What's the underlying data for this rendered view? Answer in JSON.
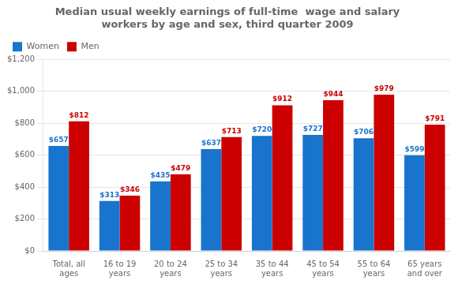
{
  "chart_data": {
    "type": "bar",
    "title": "Median usual weekly earnings of full-time  wage and salary\nworkers by age and sex, third quarter 2009",
    "categories": [
      "Total, all\nages",
      "16 to 19\nyears",
      "20 to 24\nyears",
      "25 to 34\nyears",
      "35 to 44\nyears",
      "45 to 54\nyears",
      "55 to 64\nyears",
      "65 years\nand over"
    ],
    "series": [
      {
        "name": "Women",
        "color": "#1874CD",
        "values": [
          657,
          313,
          435,
          637,
          720,
          727,
          706,
          599
        ],
        "value_labels": [
          "$657",
          "$313",
          "$435",
          "$637",
          "$720",
          "$727",
          "$706",
          "$599"
        ]
      },
      {
        "name": "Men",
        "color": "#CC0000",
        "values": [
          812,
          346,
          479,
          713,
          912,
          944,
          979,
          791
        ],
        "value_labels": [
          "$812",
          "$346",
          "$479",
          "$713",
          "$912",
          "$944",
          "$979",
          "$791"
        ]
      }
    ],
    "ylim": [
      0,
      1200
    ],
    "yticks": [
      {
        "value": 0,
        "label": "$0"
      },
      {
        "value": 200,
        "label": "$200"
      },
      {
        "value": 400,
        "label": "$400"
      },
      {
        "value": 600,
        "label": "$600"
      },
      {
        "value": 800,
        "label": "$800"
      },
      {
        "value": 1000,
        "label": "$1,000"
      },
      {
        "value": 1200,
        "label": "$1,200"
      }
    ],
    "grid": true,
    "legend": "upper left",
    "data_labels": true
  }
}
